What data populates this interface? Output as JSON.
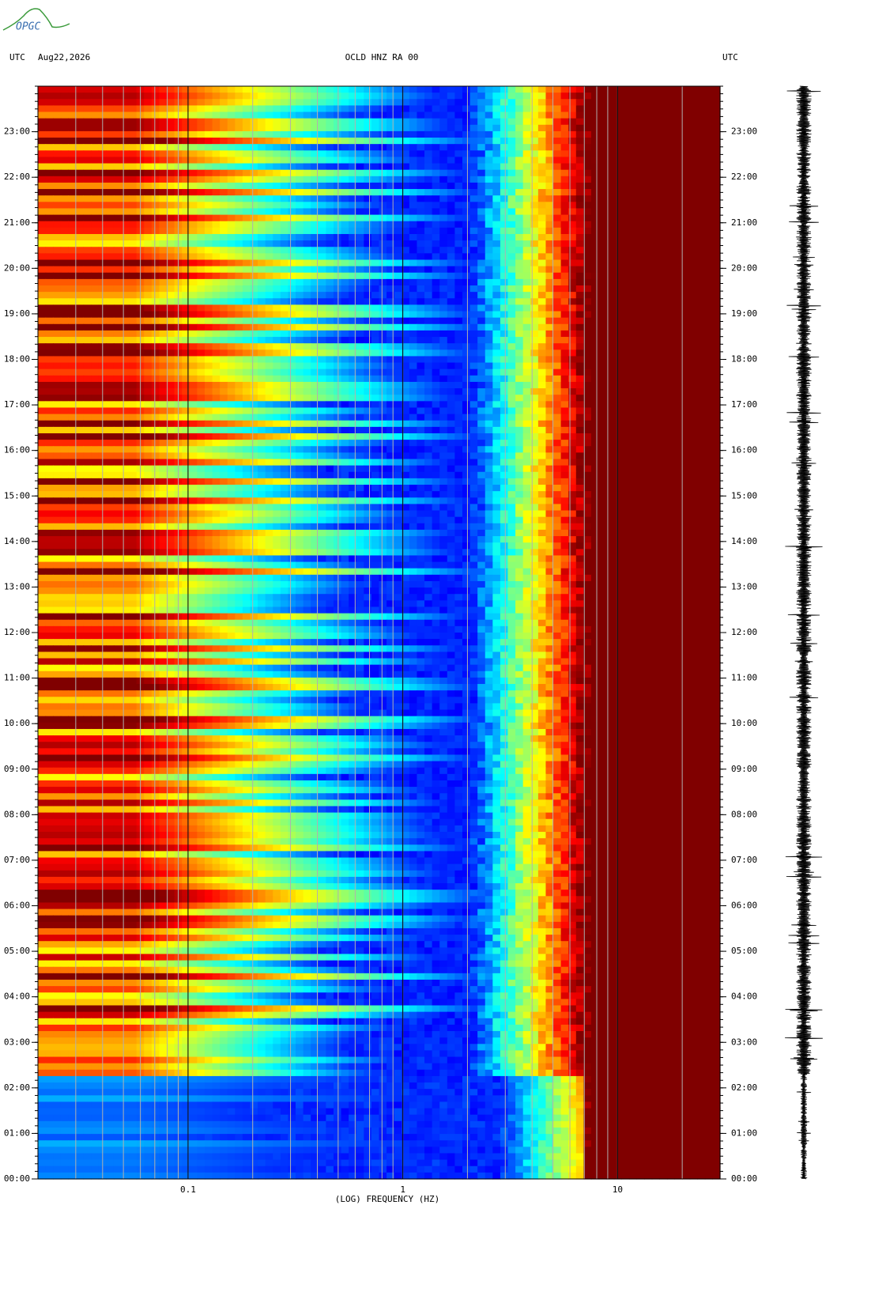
{
  "chart_data": {
    "type": "spectrogram",
    "logo": "OPGC",
    "left_header": "UTC",
    "date": "Aug22,2026",
    "title": "OCLD HNZ RA 00",
    "right_header": "UTC",
    "xlabel": "(LOG) FREQUENCY (HZ)",
    "xscale": "log",
    "xlim": [
      0.02,
      30
    ],
    "xticks": [
      0.1,
      1,
      10
    ],
    "ylim": [
      0,
      24
    ],
    "yticks": [
      {
        "value": 0,
        "label": "00:00"
      },
      {
        "value": 1,
        "label": "01:00"
      },
      {
        "value": 2,
        "label": "02:00"
      },
      {
        "value": 3,
        "label": "03:00"
      },
      {
        "value": 4,
        "label": "04:00"
      },
      {
        "value": 5,
        "label": "05:00"
      },
      {
        "value": 6,
        "label": "06:00"
      },
      {
        "value": 7,
        "label": "07:00"
      },
      {
        "value": 8,
        "label": "08:00"
      },
      {
        "value": 9,
        "label": "09:00"
      },
      {
        "value": 10,
        "label": "10:00"
      },
      {
        "value": 11,
        "label": "11:00"
      },
      {
        "value": 12,
        "label": "12:00"
      },
      {
        "value": 13,
        "label": "13:00"
      },
      {
        "value": 14,
        "label": "14:00"
      },
      {
        "value": 15,
        "label": "15:00"
      },
      {
        "value": 16,
        "label": "16:00"
      },
      {
        "value": 17,
        "label": "17:00"
      },
      {
        "value": 18,
        "label": "18:00"
      },
      {
        "value": 19,
        "label": "19:00"
      },
      {
        "value": 20,
        "label": "20:00"
      },
      {
        "value": 21,
        "label": "21:00"
      },
      {
        "value": 22,
        "label": "22:00"
      },
      {
        "value": 23,
        "label": "23:00"
      }
    ],
    "grid": true
  }
}
